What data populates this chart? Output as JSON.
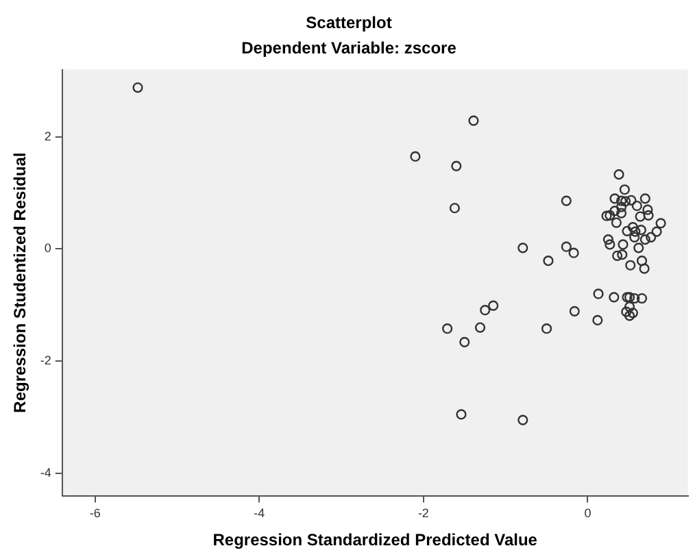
{
  "chart_data": {
    "type": "scatter",
    "title": "Scatterplot",
    "subtitle": "Dependent Variable: zscore",
    "xlabel": "Regression Standardized Predicted Value",
    "ylabel": "Regression Studentized Residual",
    "xlim": [
      -6.4,
      1.22
    ],
    "ylim": [
      -4.4,
      3.2
    ],
    "xticks": [
      -6,
      -4,
      -2,
      0
    ],
    "yticks": [
      -4,
      -2,
      0,
      2
    ],
    "grid": false,
    "legend": false,
    "marker": "circle",
    "series": [
      {
        "color": "#333333",
        "x": [
          -5.48,
          -1.39,
          -2.1,
          -1.6,
          -1.62,
          -0.26,
          -0.79,
          -0.26,
          -0.17,
          -0.48,
          -1.15,
          -1.25,
          -1.71,
          -1.31,
          -1.5,
          -0.5,
          -0.16,
          0.13,
          0.12,
          0.32,
          0.48,
          0.51,
          0.57,
          0.66,
          0.51,
          0.47,
          0.55,
          0.51,
          -1.54,
          -0.79,
          0.38,
          0.45,
          0.33,
          0.41,
          0.46,
          0.53,
          0.7,
          0.6,
          0.41,
          0.33,
          0.41,
          0.73,
          0.74,
          0.64,
          0.23,
          0.27,
          0.35,
          0.89,
          0.48,
          0.55,
          0.65,
          0.58,
          0.84,
          0.77,
          0.7,
          0.57,
          0.25,
          0.27,
          0.43,
          0.62,
          0.42,
          0.36,
          0.66,
          0.52,
          0.69
        ],
        "values": [
          2.88,
          2.29,
          1.65,
          1.48,
          0.73,
          0.86,
          0.02,
          0.04,
          -0.07,
          -0.21,
          -1.01,
          -1.09,
          -1.42,
          -1.4,
          -1.66,
          -1.42,
          -1.11,
          -0.8,
          -1.27,
          -0.86,
          -0.86,
          -0.86,
          -0.88,
          -0.88,
          -1.03,
          -1.12,
          -1.14,
          -1.19,
          -2.95,
          -3.05,
          1.33,
          1.06,
          0.9,
          0.86,
          0.85,
          0.87,
          0.9,
          0.77,
          0.75,
          0.68,
          0.64,
          0.7,
          0.6,
          0.58,
          0.59,
          0.6,
          0.47,
          0.46,
          0.32,
          0.39,
          0.34,
          0.31,
          0.31,
          0.21,
          0.17,
          0.21,
          0.17,
          0.08,
          0.08,
          0.02,
          -0.1,
          -0.12,
          -0.21,
          -0.29,
          -0.35
        ]
      }
    ]
  }
}
